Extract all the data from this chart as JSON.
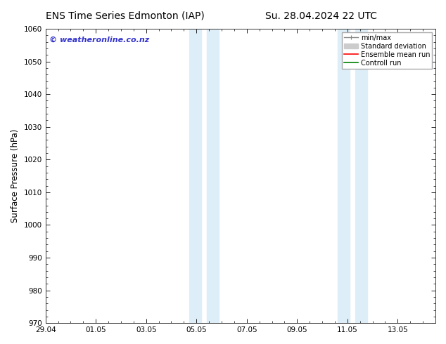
{
  "title_left": "ENS Time Series Edmonton (IAP)",
  "title_right": "Su. 28.04.2024 22 UTC",
  "ylabel": "Surface Pressure (hPa)",
  "ylim": [
    970,
    1060
  ],
  "yticks": [
    970,
    980,
    990,
    1000,
    1010,
    1020,
    1030,
    1040,
    1050,
    1060
  ],
  "xtick_labels": [
    "29.04",
    "01.05",
    "03.05",
    "05.05",
    "07.05",
    "09.05",
    "11.05",
    "13.05"
  ],
  "xtick_positions": [
    0,
    2,
    4,
    6,
    8,
    10,
    12,
    14
  ],
  "xlim": [
    0,
    15.5
  ],
  "shaded_bands": [
    {
      "start": 5.7,
      "end": 6.2
    },
    {
      "start": 6.4,
      "end": 6.9
    },
    {
      "start": 11.6,
      "end": 12.1
    },
    {
      "start": 12.3,
      "end": 12.8
    }
  ],
  "band_color": "#ddeef8",
  "watermark_text": "© weatheronline.co.nz",
  "watermark_color": "#3333cc",
  "legend_entries": [
    {
      "label": "min/max",
      "color": "#888888",
      "lw": 1.0
    },
    {
      "label": "Standard deviation",
      "color": "#cccccc",
      "lw": 6
    },
    {
      "label": "Ensemble mean run",
      "color": "red",
      "lw": 1.2
    },
    {
      "label": "Controll run",
      "color": "green",
      "lw": 1.2
    }
  ],
  "bg_color": "#ffffff",
  "title_fontsize": 10,
  "tick_fontsize": 7.5,
  "ylabel_fontsize": 8.5,
  "legend_fontsize": 7,
  "watermark_fontsize": 8
}
